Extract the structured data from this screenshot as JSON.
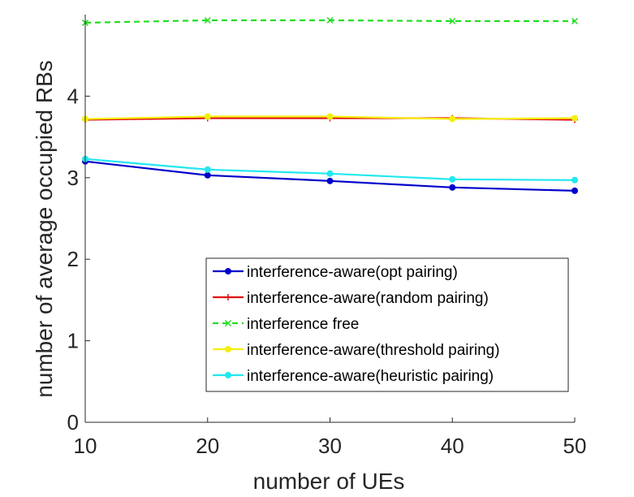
{
  "chart_data": {
    "type": "line",
    "xlabel": "number of UEs",
    "ylabel": "number of average occupied RBs",
    "x": [
      10,
      20,
      30,
      40,
      50
    ],
    "xlim": [
      10,
      50
    ],
    "ylim": [
      0,
      5
    ],
    "xticks": [
      "10",
      "20",
      "30",
      "40",
      "50"
    ],
    "yticks": [
      "0",
      "1",
      "2",
      "3",
      "4"
    ],
    "grid": false,
    "legend_position": "lower-right",
    "series": [
      {
        "name": "interference-aware(opt pairing)",
        "color": "#0000cc",
        "marker": "dot",
        "dash": "solid",
        "values": [
          3.2,
          3.03,
          2.96,
          2.88,
          2.84
        ]
      },
      {
        "name": "interference-aware(random pairing)",
        "color": "#e01010",
        "marker": "plus",
        "dash": "solid",
        "values": [
          3.71,
          3.73,
          3.73,
          3.73,
          3.71
        ]
      },
      {
        "name": "interference free",
        "color": "#22dd22",
        "marker": "x",
        "dash": "dashed",
        "values": [
          4.9,
          4.93,
          4.93,
          4.92,
          4.92
        ]
      },
      {
        "name": "interference-aware(threshold pairing)",
        "color": "#f5ef10",
        "marker": "dot",
        "dash": "solid",
        "values": [
          3.72,
          3.75,
          3.75,
          3.72,
          3.73
        ]
      },
      {
        "name": "interference-aware(heuristic pairing)",
        "color": "#20e8f0",
        "marker": "dot",
        "dash": "solid",
        "values": [
          3.23,
          3.1,
          3.05,
          2.98,
          2.97
        ]
      }
    ]
  }
}
